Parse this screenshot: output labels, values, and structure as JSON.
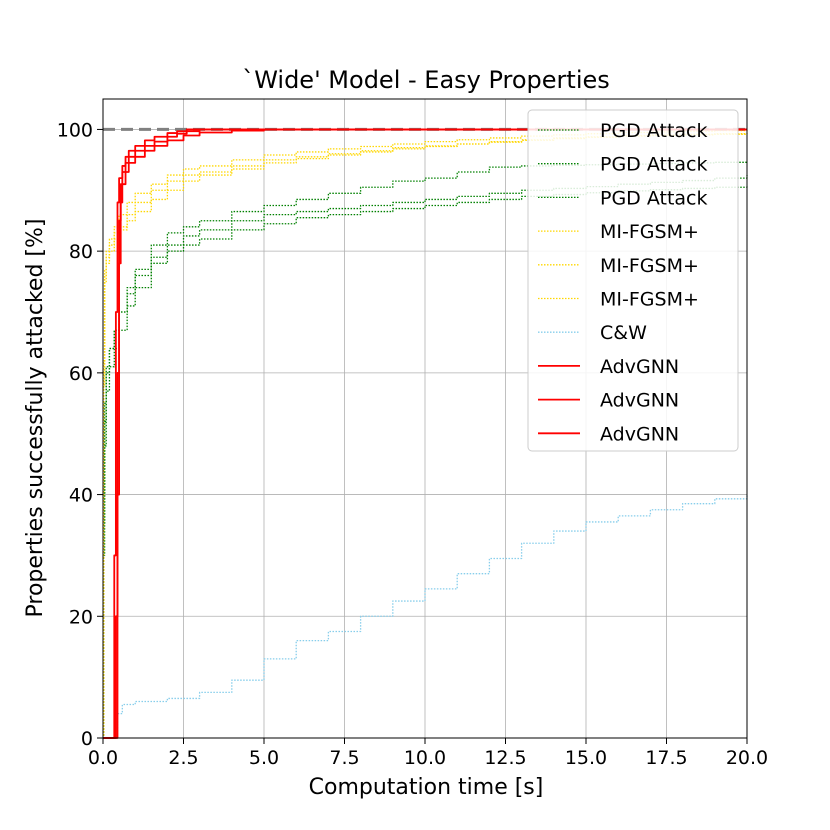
{
  "chart_data": {
    "type": "line",
    "title": "`Wide' Model - Easy Properties",
    "xlabel": "Computation time [s]",
    "ylabel": "Properties successfully attacked [%]",
    "xlim": [
      0,
      20
    ],
    "ylim": [
      0,
      105
    ],
    "xticks": [
      "0.0",
      "2.5",
      "5.0",
      "7.5",
      "10.0",
      "12.5",
      "15.0",
      "17.5",
      "20.0"
    ],
    "yticks": [
      "0",
      "20",
      "40",
      "60",
      "80",
      "100"
    ],
    "grid": true,
    "legend_position": "top-right",
    "reference_line": {
      "y": 100,
      "style": "dashed",
      "color": "#808080"
    },
    "colors": {
      "pgd": "#008000",
      "mifgsm": "#ffd700",
      "cw": "#87ceeb",
      "advgnn": "#ff0000"
    },
    "series": [
      {
        "name": "PGD Attack",
        "color": "#008000",
        "style": "dotted",
        "x": [
          0,
          0.02,
          0.05,
          0.1,
          0.2,
          0.35,
          0.5,
          0.75,
          1.0,
          1.5,
          2.0,
          2.5,
          3.0,
          4.0,
          5.0,
          6.0,
          7.0,
          8.0,
          9.0,
          10.0,
          11.0,
          12.0,
          13.0,
          14.0,
          15.0,
          16.0,
          17.0,
          18.0,
          19.0,
          20.0
        ],
        "y": [
          0,
          35,
          52,
          60,
          64,
          67,
          70,
          73,
          76,
          79,
          81,
          82.5,
          83.5,
          85,
          86,
          86.5,
          87,
          87.5,
          88,
          88.5,
          89,
          89.5,
          90,
          90.3,
          90.6,
          91,
          91.3,
          91.6,
          92,
          92.5
        ]
      },
      {
        "name": "PGD Attack",
        "color": "#008000",
        "style": "dotted",
        "x": [
          0,
          0.02,
          0.05,
          0.1,
          0.2,
          0.35,
          0.5,
          0.75,
          1.0,
          1.5,
          2.0,
          2.5,
          3.0,
          4.0,
          5.0,
          6.0,
          7.0,
          8.0,
          9.0,
          10.0,
          11.0,
          12.0,
          13.0,
          14.0,
          15.0,
          16.0,
          17.0,
          18.0,
          19.0,
          20.0
        ],
        "y": [
          0,
          40,
          55,
          61,
          64,
          67,
          70,
          74,
          77,
          81,
          83,
          84,
          85,
          86.5,
          87.5,
          88.5,
          89.5,
          90.5,
          91.5,
          92,
          93,
          93.8,
          94,
          94.1,
          94.2,
          94.3,
          94.4,
          94.5,
          94.6,
          94.8
        ]
      },
      {
        "name": "PGD Attack",
        "color": "#008000",
        "style": "dotted",
        "x": [
          0,
          0.02,
          0.05,
          0.1,
          0.2,
          0.35,
          0.5,
          0.75,
          1.0,
          1.5,
          2.0,
          2.5,
          3.0,
          4.0,
          5.0,
          6.0,
          7.0,
          8.0,
          9.0,
          10.0,
          11.0,
          12.0,
          13.0,
          14.0,
          15.0,
          16.0,
          17.0,
          18.0,
          19.0,
          20.0
        ],
        "y": [
          0,
          30,
          48,
          57,
          61,
          64,
          67,
          71,
          74,
          78,
          80,
          81,
          82,
          83.5,
          84.5,
          85.5,
          86,
          86.5,
          87,
          87.5,
          88,
          88.5,
          89,
          89.3,
          89.6,
          89.9,
          90.1,
          90.3,
          90.5,
          90.7
        ]
      },
      {
        "name": "MI-FGSM+",
        "color": "#ffd700",
        "style": "dotted",
        "x": [
          0,
          0.02,
          0.05,
          0.1,
          0.2,
          0.35,
          0.5,
          0.75,
          1.0,
          1.5,
          2.0,
          2.5,
          3.0,
          4.0,
          5.0,
          6.0,
          7.0,
          8.0,
          9.0,
          10.0,
          11.0,
          12.0,
          13.0,
          14.0,
          15.0,
          16.0,
          17.0,
          18.0,
          19.0,
          20.0
        ],
        "y": [
          0,
          60,
          76,
          79,
          81,
          83,
          84,
          86,
          88,
          90,
          91.5,
          92.5,
          93,
          94,
          95,
          95.5,
          96,
          96.5,
          97,
          97.3,
          97.6,
          97.9,
          98.2,
          98.5,
          98.7,
          98.9,
          99,
          99.1,
          99.2,
          99.3
        ]
      },
      {
        "name": "MI-FGSM+",
        "color": "#ffd700",
        "style": "dotted",
        "x": [
          0,
          0.02,
          0.05,
          0.1,
          0.2,
          0.35,
          0.5,
          0.75,
          1.0,
          1.5,
          2.0,
          2.5,
          3.0,
          4.0,
          5.0,
          6.0,
          7.0,
          8.0,
          9.0,
          10.0,
          11.0,
          12.0,
          13.0,
          14.0,
          15.0,
          16.0,
          17.0,
          18.0,
          19.0,
          20.0
        ],
        "y": [
          0,
          62,
          77,
          80,
          82,
          84,
          86,
          88,
          89.5,
          91,
          92.5,
          93.5,
          94,
          95,
          95.8,
          96.3,
          96.8,
          97.2,
          97.6,
          98,
          98.3,
          98.6,
          98.9,
          99.1,
          99.3,
          99.5,
          99.6,
          99.7,
          99.8,
          99.9
        ]
      },
      {
        "name": "MI-FGSM+",
        "color": "#ffd700",
        "style": "dotted",
        "x": [
          0,
          0.02,
          0.05,
          0.1,
          0.2,
          0.35,
          0.5,
          0.75,
          1.0,
          1.5,
          2.0,
          2.5,
          3.0,
          4.0,
          5.0,
          6.0,
          7.0,
          8.0,
          9.0,
          10.0,
          11.0,
          12.0,
          13.0,
          14.0,
          15.0,
          16.0,
          17.0,
          18.0,
          19.0,
          20.0
        ],
        "y": [
          0,
          58,
          75,
          78,
          80,
          82,
          83.5,
          85,
          86.5,
          88.5,
          90,
          91.5,
          92.5,
          93.5,
          94.5,
          95.2,
          95.8,
          96.3,
          96.8,
          97.2,
          97.6,
          98,
          98.3,
          98.6,
          98.8,
          99,
          99.1,
          99.2,
          99.3,
          99.4
        ]
      },
      {
        "name": "C&W",
        "color": "#87ceeb",
        "style": "dotted",
        "x": [
          0,
          0.3,
          0.45,
          0.6,
          1.0,
          2.0,
          3.0,
          4.0,
          5.0,
          6.0,
          7.0,
          8.0,
          9.0,
          10.0,
          11.0,
          12.0,
          13.0,
          14.0,
          15.0,
          16.0,
          17.0,
          18.0,
          19.0,
          20.0
        ],
        "y": [
          0,
          0,
          4,
          5.5,
          6,
          6.5,
          7.5,
          9.5,
          13,
          16,
          17.5,
          20,
          22.5,
          24.5,
          27,
          29.5,
          32,
          34,
          35.5,
          36.5,
          37.5,
          38.5,
          39.3,
          40
        ]
      },
      {
        "name": "AdvGNN",
        "color": "#ff0000",
        "style": "solid",
        "x": [
          0,
          0.35,
          0.4,
          0.45,
          0.5,
          0.55,
          0.6,
          0.7,
          0.8,
          1.0,
          1.3,
          1.6,
          2.0,
          2.3,
          2.6,
          3.0,
          5.0,
          10.0,
          15.0,
          20.0
        ],
        "y": [
          0,
          0,
          20,
          60,
          85,
          91,
          93,
          94.5,
          95.5,
          96.5,
          97.3,
          98,
          98.8,
          99.3,
          99.7,
          100,
          100,
          100,
          100,
          100
        ]
      },
      {
        "name": "AdvGNN",
        "color": "#ff0000",
        "style": "solid",
        "x": [
          0,
          0.3,
          0.35,
          0.4,
          0.45,
          0.5,
          0.6,
          0.7,
          0.8,
          1.0,
          1.3,
          1.6,
          2.0,
          2.3,
          2.6,
          3.0,
          5.0,
          10.0,
          15.0,
          20.0
        ],
        "y": [
          0,
          0,
          30,
          70,
          88,
          92,
          94,
          95.5,
          96.5,
          97.3,
          98.2,
          98.8,
          99.4,
          99.7,
          100,
          100,
          100,
          100,
          100,
          100
        ]
      },
      {
        "name": "AdvGNN",
        "color": "#ff0000",
        "style": "solid",
        "x": [
          0,
          0.4,
          0.45,
          0.5,
          0.55,
          0.6,
          0.7,
          0.8,
          1.0,
          1.3,
          1.6,
          2.0,
          2.5,
          3.0,
          4.0,
          5.0,
          10.0,
          15.0,
          20.0
        ],
        "y": [
          0,
          0,
          40,
          78,
          88,
          91,
          93,
          94.5,
          95.5,
          96.5,
          97.3,
          98.2,
          99,
          99.5,
          99.8,
          100,
          100,
          100,
          100
        ]
      }
    ]
  }
}
